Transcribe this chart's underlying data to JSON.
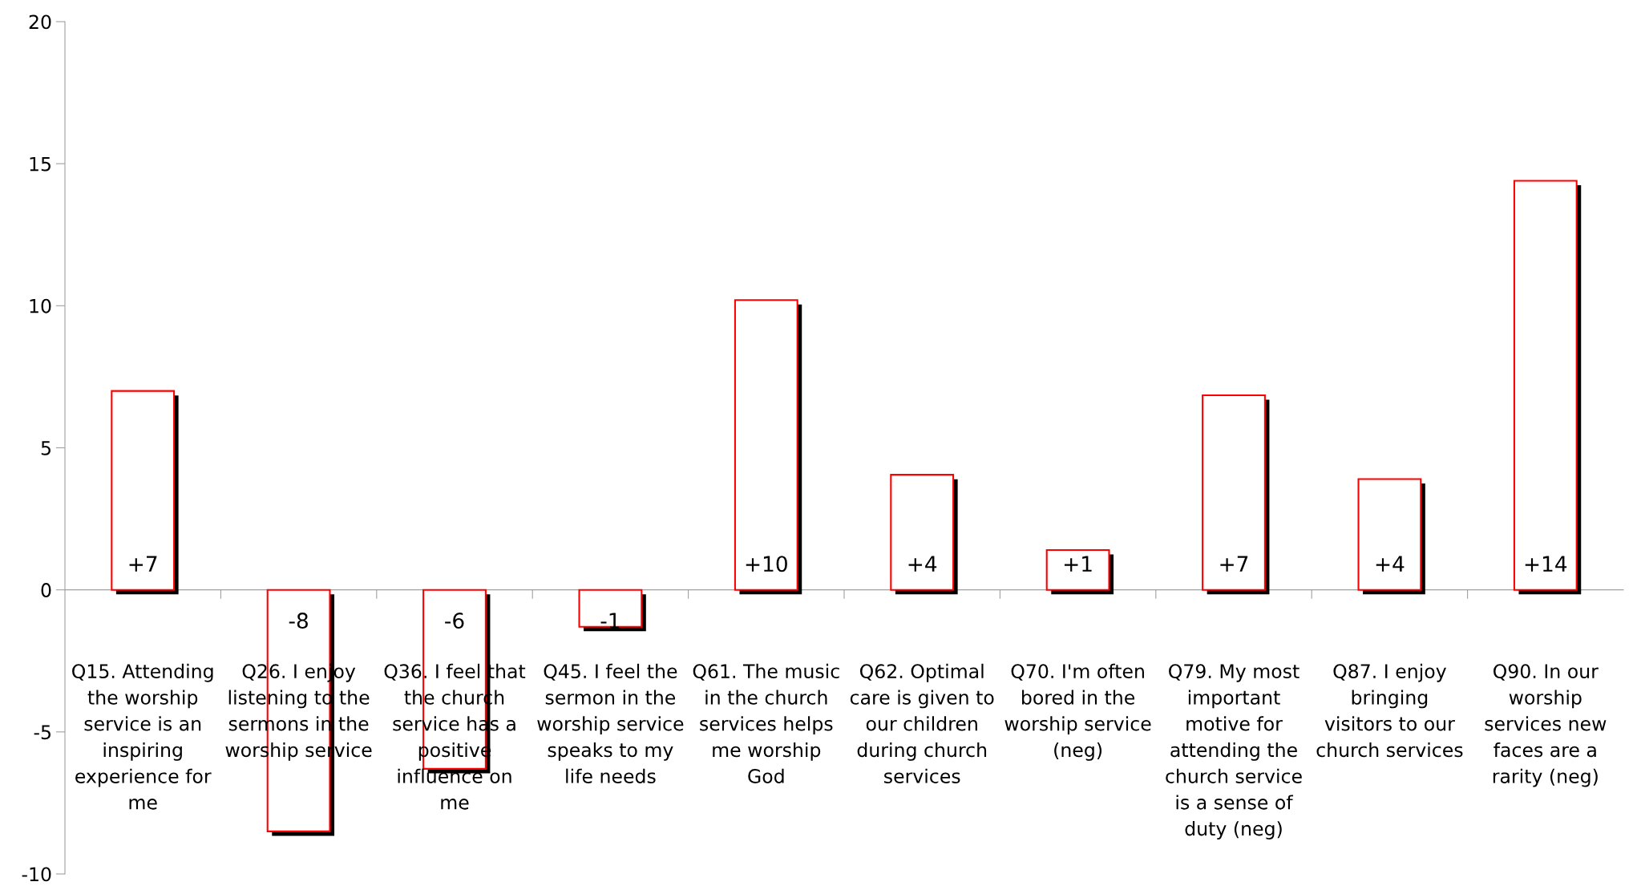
{
  "chart_data": {
    "type": "bar",
    "categories": [
      "Q15. Attending the worship service is an inspiring experience for me",
      "Q26. I enjoy listening to the sermons in the worship service",
      "Q36. I feel that the church service has a positive influence on me",
      "Q45. I feel the sermon in the worship service speaks to my life needs",
      "Q61. The music in the church services helps me worship God",
      "Q62. Optimal care is given to our children during church services",
      "Q70. I'm often bored in the worship service (neg)",
      "Q79. My most important motive for attending the church service is a sense of duty (neg)",
      "Q87. I enjoy bringing visitors to our church services",
      "Q90. In our worship services new faces are a rarity (neg)"
    ],
    "values": [
      7.0,
      -8.5,
      -6.3,
      -1.3,
      10.2,
      4.05,
      1.4,
      6.85,
      3.9,
      14.4
    ],
    "value_labels": [
      "+7",
      "-8",
      "-6",
      "-1",
      "+10",
      "+4",
      "+1",
      "+7",
      "+4",
      "+14"
    ],
    "color": "#ff0000",
    "ylim": [
      -10,
      20
    ],
    "yticks": [
      -10,
      -5,
      0,
      5,
      10,
      15,
      20
    ]
  }
}
